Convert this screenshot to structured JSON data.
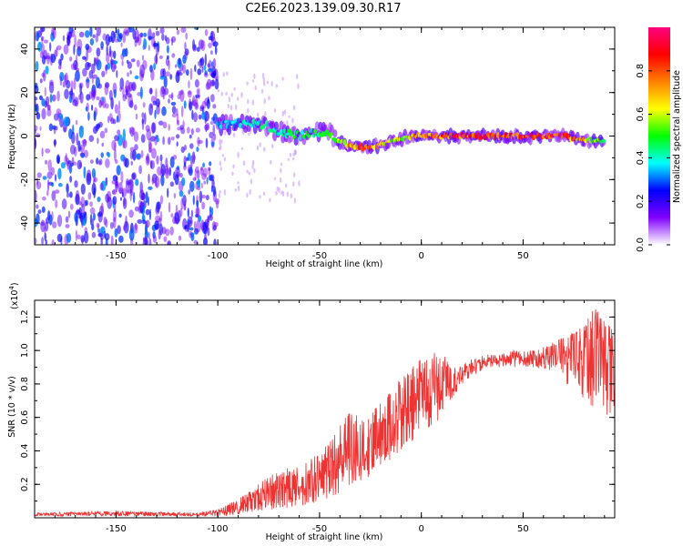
{
  "title": "C2E6.2023.139.09.30.R17",
  "chart_data": [
    {
      "type": "heatmap",
      "title": "C2E6.2023.139.09.30.R17",
      "xlabel": "Height of straight line (km)",
      "ylabel": "Frequency (Hz)",
      "xlim": [
        -190,
        95
      ],
      "ylim": [
        -50,
        50
      ],
      "xticks": [
        -150,
        -100,
        -50,
        0,
        50
      ],
      "xtick_labels": [
        "-150",
        "-100",
        "-50",
        "0",
        "50"
      ],
      "yticks": [
        -40,
        -20,
        0,
        20,
        40
      ],
      "ytick_labels": [
        "-40",
        "-20",
        "0",
        "20",
        "40"
      ],
      "colorbar": {
        "label": "Normalized spectral amplitude",
        "range": [
          0,
          1
        ],
        "ticks": [
          0.0,
          0.2,
          0.4,
          0.6,
          0.8
        ],
        "tick_labels": [
          "0.0",
          "0.2",
          "0.4",
          "0.6",
          "0.8"
        ],
        "colors": [
          "#ffffff",
          "#8000ff",
          "#0000ff",
          "#00ffff",
          "#00ff00",
          "#ffff00",
          "#ff8000",
          "#ff0000",
          "#ff0080"
        ]
      },
      "ridge": {
        "description": "dominant frequency ridge vs height",
        "x": [
          -100,
          -90,
          -80,
          -70,
          -60,
          -50,
          -45,
          -40,
          -35,
          -30,
          -25,
          -20,
          -15,
          -10,
          -5,
          0,
          10,
          20,
          30,
          40,
          50,
          60,
          70,
          80,
          90
        ],
        "y": [
          5,
          6,
          6,
          2,
          0,
          2,
          1,
          -2,
          -5,
          -5,
          -5,
          -4,
          -2,
          -1,
          0,
          0,
          0,
          0,
          0,
          0,
          0,
          0,
          0,
          -2,
          -2
        ],
        "amplitude": [
          0.35,
          0.4,
          0.45,
          0.45,
          0.5,
          0.5,
          0.5,
          0.6,
          0.8,
          0.85,
          0.85,
          0.7,
          0.6,
          0.65,
          0.7,
          0.8,
          0.85,
          0.9,
          0.9,
          0.95,
          0.9,
          0.95,
          0.9,
          0.7,
          0.55
        ]
      },
      "noise_region_x": [
        -190,
        -100
      ],
      "noise_amplitude": [
        0.05,
        0.25
      ]
    },
    {
      "type": "line",
      "xlabel": "Height of straight line (km)",
      "ylabel": "SNR (10 * v/v)",
      "y_scale_label": "(x10",
      "y_scale_exponent": "4",
      "y_scale_close": ")",
      "xlim": [
        -190,
        95
      ],
      "ylim": [
        0,
        1.3
      ],
      "xticks": [
        -150,
        -100,
        -50,
        0,
        50
      ],
      "xtick_labels": [
        "-150",
        "-100",
        "-50",
        "0",
        "50"
      ],
      "yticks": [
        0.2,
        0.4,
        0.6,
        0.8,
        1.0,
        1.2
      ],
      "ytick_labels": [
        "0.2",
        "0.4",
        "0.6",
        "0.8",
        "1.0",
        "1.2"
      ],
      "color": "#ee3333",
      "series": [
        {
          "name": "SNR envelope (upper)",
          "x": [
            -190,
            -150,
            -110,
            -100,
            -95,
            -90,
            -85,
            -80,
            -75,
            -70,
            -65,
            -60,
            -55,
            -50,
            -45,
            -40,
            -35,
            -30,
            -25,
            -20,
            -15,
            -10,
            -5,
            0,
            5,
            10,
            15,
            20,
            25,
            30,
            35,
            40,
            45,
            50,
            55,
            60,
            65,
            70,
            75,
            80,
            85,
            90,
            95
          ],
          "y": [
            0.03,
            0.04,
            0.03,
            0.05,
            0.08,
            0.12,
            0.15,
            0.2,
            0.25,
            0.28,
            0.3,
            0.32,
            0.35,
            0.4,
            0.45,
            0.55,
            0.65,
            0.6,
            0.62,
            0.7,
            0.75,
            0.85,
            0.9,
            0.95,
            0.98,
            1.0,
            0.9,
            0.92,
            0.95,
            0.97,
            0.98,
            0.98,
            1.0,
            1.0,
            1.0,
            1.02,
            1.05,
            1.08,
            1.12,
            1.2,
            1.25,
            1.22,
            1.15
          ]
        },
        {
          "name": "SNR envelope (lower)",
          "x": [
            -190,
            -150,
            -110,
            -100,
            -95,
            -90,
            -85,
            -80,
            -75,
            -70,
            -65,
            -60,
            -55,
            -50,
            -45,
            -40,
            -35,
            -30,
            -25,
            -20,
            -15,
            -10,
            -5,
            0,
            5,
            10,
            15,
            20,
            25,
            30,
            35,
            40,
            45,
            50,
            55,
            60,
            65,
            70,
            75,
            80,
            85,
            90,
            95
          ],
          "y": [
            0.01,
            0.01,
            0.01,
            0.01,
            0.01,
            0.02,
            0.03,
            0.04,
            0.05,
            0.05,
            0.06,
            0.07,
            0.08,
            0.1,
            0.12,
            0.15,
            0.2,
            0.22,
            0.25,
            0.3,
            0.35,
            0.4,
            0.45,
            0.5,
            0.55,
            0.6,
            0.7,
            0.8,
            0.85,
            0.88,
            0.9,
            0.9,
            0.9,
            0.9,
            0.9,
            0.88,
            0.88,
            0.82,
            0.75,
            0.7,
            0.65,
            0.62,
            0.6
          ]
        }
      ]
    }
  ]
}
